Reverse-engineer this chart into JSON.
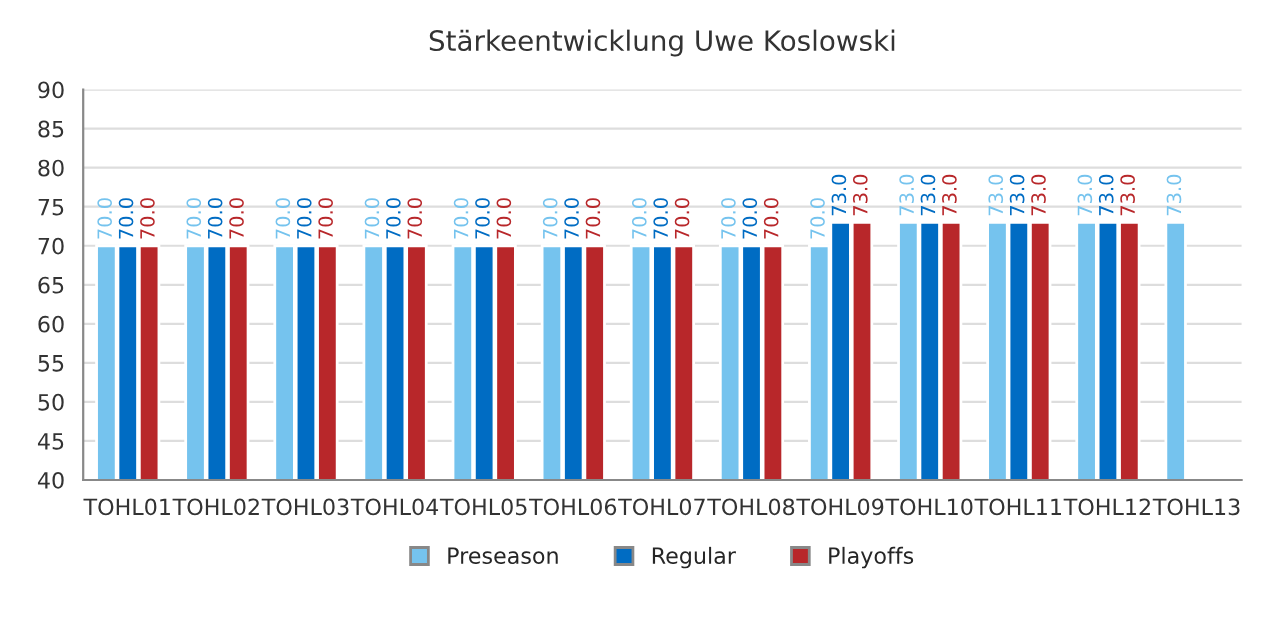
{
  "chart_data": {
    "type": "bar",
    "title": "Stärkeentwicklung Uwe Koslowski",
    "categories": [
      "TOHL01",
      "TOHL02",
      "TOHL03",
      "TOHL04",
      "TOHL05",
      "TOHL06",
      "TOHL07",
      "TOHL08",
      "TOHL09",
      "TOHL10",
      "TOHL11",
      "TOHL12",
      "TOHL13"
    ],
    "series": [
      {
        "name": "Preseason",
        "color": "#75c3ee",
        "values": [
          70,
          70,
          70,
          70,
          70,
          70,
          70,
          70,
          70,
          73,
          73,
          73,
          73
        ],
        "value_labels": [
          "70.0",
          "70.0",
          "70.0",
          "70.0",
          "70.0",
          "70.0",
          "70.0",
          "70.0",
          "70.0",
          "73.0",
          "73.0",
          "73.0",
          "73.0"
        ]
      },
      {
        "name": "Regular",
        "color": "#006cc3",
        "values": [
          70,
          70,
          70,
          70,
          70,
          70,
          70,
          70,
          73,
          73,
          73,
          73,
          null
        ],
        "value_labels": [
          "70.0",
          "70.0",
          "70.0",
          "70.0",
          "70.0",
          "70.0",
          "70.0",
          "70.0",
          "73.0",
          "73.0",
          "73.0",
          "73.0",
          null
        ]
      },
      {
        "name": "Playoffs",
        "color": "#b8272a",
        "values": [
          70,
          70,
          70,
          70,
          70,
          70,
          70,
          70,
          73,
          73,
          73,
          73,
          null
        ],
        "value_labels": [
          "70.0",
          "70.0",
          "70.0",
          "70.0",
          "70.0",
          "70.0",
          "70.0",
          "70.0",
          "73.0",
          "73.0",
          "73.0",
          "73.0",
          null
        ]
      }
    ],
    "ylim": [
      40,
      90
    ],
    "yticks": [
      40,
      45,
      50,
      55,
      60,
      65,
      70,
      75,
      80,
      85,
      90
    ],
    "grid": "y",
    "legend": "bottom"
  }
}
